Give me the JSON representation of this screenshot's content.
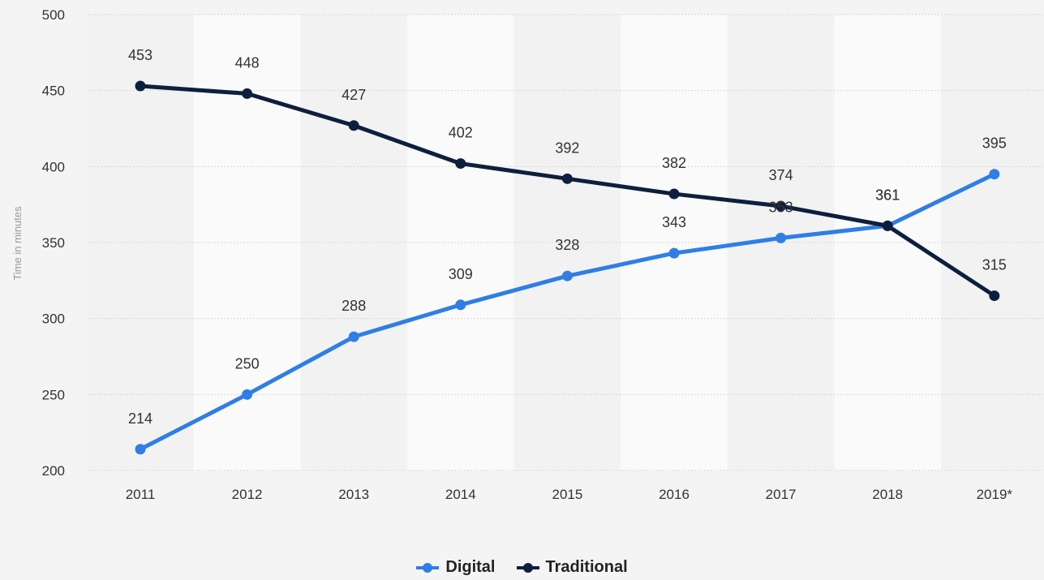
{
  "chart_data": {
    "type": "line",
    "categories": [
      "2011",
      "2012",
      "2013",
      "2014",
      "2015",
      "2016",
      "2017",
      "2018",
      "2019*"
    ],
    "series": [
      {
        "name": "Digital",
        "values": [
          214,
          250,
          288,
          309,
          328,
          343,
          353,
          361,
          395
        ],
        "color": "#2f7ee6"
      },
      {
        "name": "Traditional",
        "values": [
          453,
          448,
          427,
          402,
          392,
          382,
          374,
          361,
          315
        ],
        "color": "#0d1f3c"
      }
    ],
    "title": "",
    "xlabel": "",
    "ylabel": "Time in minutes",
    "ylim": [
      200,
      500
    ],
    "yticks": [
      "200",
      "250",
      "300",
      "350",
      "400",
      "450",
      "500"
    ],
    "grid": true,
    "legend": "bottom-center"
  }
}
